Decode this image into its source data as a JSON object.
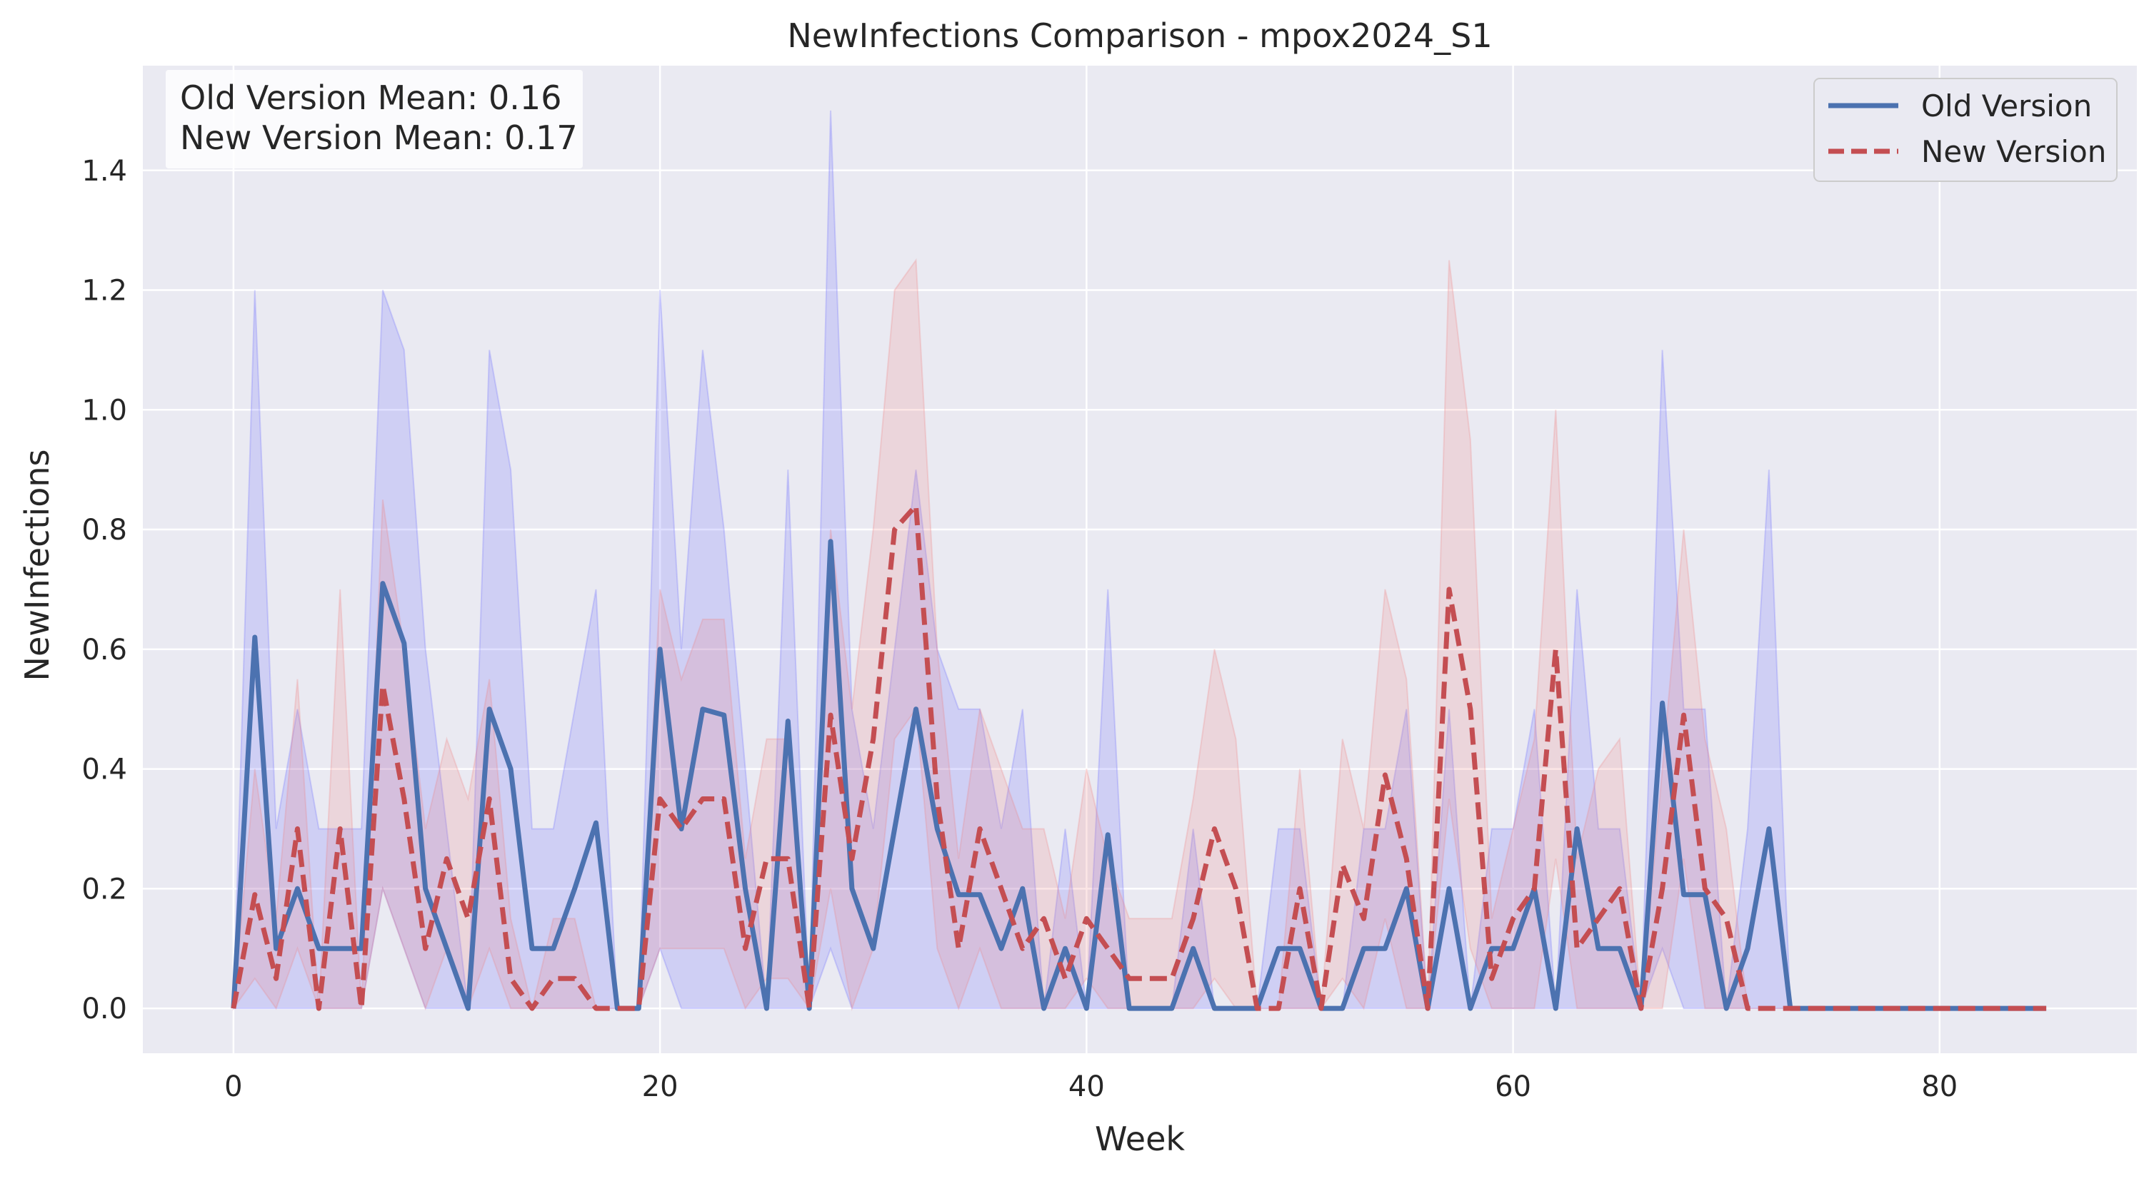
{
  "chart_data": {
    "type": "line",
    "title": "NewInfections Comparison - mpox2024_S1",
    "xlabel": "Week",
    "ylabel": "NewInfections",
    "xlim": [
      -4.25,
      89.25
    ],
    "ylim": [
      -0.075,
      1.575
    ],
    "xticks": [
      0,
      20,
      40,
      60,
      80
    ],
    "xtick_labels": [
      "0",
      "20",
      "40",
      "60",
      "80"
    ],
    "yticks": [
      0.0,
      0.2,
      0.4,
      0.6,
      0.8,
      1.0,
      1.2,
      1.4
    ],
    "ytick_labels": [
      "0.0",
      "0.2",
      "0.4",
      "0.6",
      "0.8",
      "1.0",
      "1.2",
      "1.4"
    ],
    "grid": true,
    "legend_position": "top-right",
    "x": [
      0,
      1,
      2,
      3,
      4,
      5,
      6,
      7,
      8,
      9,
      10,
      11,
      12,
      13,
      14,
      15,
      16,
      17,
      18,
      19,
      20,
      21,
      22,
      23,
      24,
      25,
      26,
      27,
      28,
      29,
      30,
      31,
      32,
      33,
      34,
      35,
      36,
      37,
      38,
      39,
      40,
      41,
      42,
      43,
      44,
      45,
      46,
      47,
      48,
      49,
      50,
      51,
      52,
      53,
      54,
      55,
      56,
      57,
      58,
      59,
      60,
      61,
      62,
      63,
      64,
      65,
      66,
      67,
      68,
      69,
      70,
      71,
      72,
      73,
      74,
      75,
      76,
      77,
      78,
      79,
      80,
      81,
      82,
      83,
      84,
      85
    ],
    "series": [
      {
        "name": "Old Version",
        "color": "#4c72b0",
        "line_style": "solid",
        "band_color": "#6666ff",
        "values": [
          0,
          0.62,
          0.1,
          0.2,
          0.1,
          0.1,
          0.1,
          0.71,
          0.61,
          0.2,
          0.1,
          0,
          0.5,
          0.4,
          0.1,
          0.1,
          0.2,
          0.31,
          0,
          0,
          0.6,
          0.3,
          0.5,
          0.49,
          0.2,
          0,
          0.48,
          0,
          0.78,
          0.2,
          0.1,
          0.3,
          0.5,
          0.3,
          0.19,
          0.19,
          0.1,
          0.2,
          0,
          0.1,
          0,
          0.29,
          0,
          0,
          0,
          0.1,
          0,
          0,
          0,
          0.1,
          0.1,
          0,
          0,
          0.1,
          0.1,
          0.2,
          0,
          0.2,
          0,
          0.1,
          0.1,
          0.2,
          0,
          0.3,
          0.1,
          0.1,
          0,
          0.51,
          0.19,
          0.19,
          0,
          0.1,
          0.3,
          0,
          0,
          0,
          0,
          0,
          0,
          0,
          0,
          0,
          0,
          0,
          0,
          0
        ],
        "lower": [
          0,
          0,
          0,
          0,
          0,
          0,
          0,
          0.2,
          0.1,
          0,
          0,
          0,
          0,
          0,
          0,
          0,
          0,
          0,
          0,
          0,
          0.1,
          0,
          0,
          0,
          0,
          0,
          0,
          0,
          0.1,
          0,
          0,
          0,
          0,
          0,
          0,
          0,
          0,
          0,
          0,
          0,
          0,
          0,
          0,
          0,
          0,
          0,
          0,
          0,
          0,
          0,
          0,
          0,
          0,
          0,
          0,
          0,
          0,
          0,
          0,
          0,
          0,
          0,
          0,
          0,
          0,
          0,
          0,
          0.1,
          0,
          0,
          0,
          0,
          0,
          0,
          0,
          0,
          0,
          0,
          0,
          0,
          0,
          0,
          0,
          0,
          0,
          0
        ],
        "upper": [
          0,
          1.2,
          0.3,
          0.5,
          0.3,
          0.3,
          0.3,
          1.2,
          1.1,
          0.6,
          0.3,
          0,
          1.1,
          0.9,
          0.3,
          0.3,
          0.5,
          0.7,
          0,
          0,
          1.2,
          0.6,
          1.1,
          0.8,
          0.4,
          0,
          0.9,
          0,
          1.5,
          0.5,
          0.3,
          0.6,
          0.9,
          0.6,
          0.5,
          0.5,
          0.3,
          0.5,
          0,
          0.3,
          0,
          0.7,
          0,
          0,
          0,
          0.3,
          0,
          0,
          0,
          0.3,
          0.3,
          0,
          0,
          0.3,
          0.3,
          0.5,
          0,
          0.5,
          0,
          0.3,
          0.3,
          0.5,
          0,
          0.7,
          0.3,
          0.3,
          0,
          1.1,
          0.5,
          0.5,
          0,
          0.3,
          0.9,
          0,
          0,
          0,
          0,
          0,
          0,
          0,
          0,
          0,
          0,
          0,
          0,
          0
        ]
      },
      {
        "name": "New Version",
        "color": "#c44e52",
        "line_style": "dashed",
        "band_color": "#f08080",
        "values": [
          0,
          0.19,
          0.05,
          0.3,
          0,
          0.3,
          0,
          0.54,
          0.35,
          0.1,
          0.25,
          0.15,
          0.35,
          0.05,
          0,
          0.05,
          0.05,
          0,
          0,
          0,
          0.35,
          0.3,
          0.35,
          0.35,
          0.1,
          0.25,
          0.25,
          0,
          0.49,
          0.25,
          0.45,
          0.8,
          0.84,
          0.35,
          0.1,
          0.3,
          0.2,
          0.1,
          0.15,
          0.05,
          0.15,
          0.1,
          0.05,
          0.05,
          0.05,
          0.15,
          0.3,
          0.2,
          0,
          0,
          0.2,
          0,
          0.24,
          0.15,
          0.39,
          0.25,
          0,
          0.7,
          0.5,
          0.05,
          0.15,
          0.2,
          0.6,
          0.1,
          0.15,
          0.2,
          0,
          0.2,
          0.49,
          0.2,
          0.15,
          0,
          0,
          0,
          0,
          0,
          0,
          0,
          0,
          0,
          0,
          0,
          0,
          0,
          0,
          0
        ],
        "lower": [
          0,
          0.05,
          0,
          0.1,
          0,
          0,
          0,
          0.2,
          0.1,
          0,
          0.1,
          0,
          0.1,
          0,
          0,
          0,
          0,
          0,
          0,
          0,
          0.1,
          0.1,
          0.1,
          0.1,
          0,
          0.05,
          0.05,
          0,
          0.2,
          0,
          0.1,
          0.45,
          0.5,
          0.1,
          0,
          0.1,
          0,
          0,
          0,
          0,
          0.05,
          0,
          0,
          0,
          0,
          0,
          0.05,
          0,
          0,
          0,
          0,
          0,
          0.05,
          0,
          0.15,
          0,
          0,
          0.35,
          0.1,
          0,
          0,
          0,
          0.25,
          0,
          0,
          0,
          0,
          0,
          0.25,
          0,
          0,
          0,
          0,
          0,
          0,
          0,
          0,
          0,
          0,
          0,
          0,
          0,
          0,
          0,
          0,
          0
        ],
        "upper": [
          0,
          0.4,
          0.15,
          0.55,
          0,
          0.7,
          0,
          0.85,
          0.6,
          0.3,
          0.45,
          0.35,
          0.55,
          0.15,
          0,
          0.15,
          0.15,
          0,
          0,
          0,
          0.7,
          0.55,
          0.65,
          0.65,
          0.25,
          0.45,
          0.45,
          0,
          0.8,
          0.5,
          0.8,
          1.2,
          1.25,
          0.6,
          0.25,
          0.5,
          0.4,
          0.3,
          0.3,
          0.15,
          0.4,
          0.25,
          0.15,
          0.15,
          0.15,
          0.35,
          0.6,
          0.45,
          0,
          0,
          0.4,
          0,
          0.45,
          0.3,
          0.7,
          0.55,
          0,
          1.25,
          0.95,
          0.15,
          0.3,
          0.45,
          1.0,
          0.25,
          0.4,
          0.45,
          0,
          0.4,
          0.8,
          0.45,
          0.3,
          0,
          0,
          0,
          0,
          0,
          0,
          0,
          0,
          0,
          0,
          0,
          0,
          0,
          0,
          0
        ]
      }
    ]
  },
  "stats": {
    "old_mean": "Old Version Mean: 0.16",
    "new_mean": "New Version Mean: 0.17"
  },
  "colors": {
    "plot_background": "#eaeaf2",
    "grid": "#ffffff",
    "text": "#262626"
  }
}
